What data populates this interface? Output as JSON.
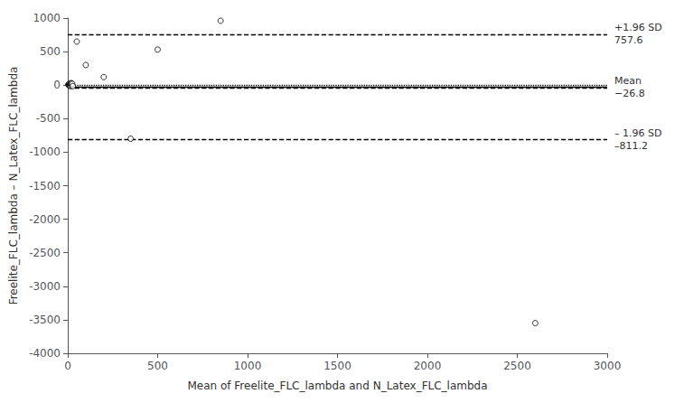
{
  "chart_data": {
    "type": "scatter",
    "xlabel": "Mean of Freelite_FLC_lambda and N_Latex_FLC_lambda",
    "ylabel": "Freelite_FLC_lambda – N_Latex_FLC_lambda",
    "x": [
      3,
      5,
      6,
      7,
      8,
      9,
      10,
      11,
      12,
      13,
      14,
      15,
      16,
      17,
      18,
      20,
      22,
      25,
      28,
      50,
      100,
      200,
      350,
      500,
      850,
      2600
    ],
    "values": [
      5,
      10,
      -3,
      8,
      15,
      -5,
      20,
      10,
      -8,
      5,
      12,
      18,
      -12,
      8,
      25,
      30,
      15,
      20,
      -15,
      650,
      300,
      120,
      -800,
      530,
      960,
      -3550
    ],
    "color": "black",
    "marker": "open_circle",
    "xlim": [
      0,
      3000
    ],
    "ylim": [
      -4000,
      1000
    ],
    "xticks": [
      0,
      500,
      1000,
      1500,
      2000,
      2500,
      3000
    ],
    "yticks": [
      -4000,
      -3500,
      -3000,
      -2500,
      -2000,
      -1500,
      -1000,
      -500,
      0,
      500,
      1000
    ],
    "grid": false,
    "lines": [
      {
        "y": 757.6,
        "line_style": "dashed",
        "color": "black",
        "annotation": [
          "+1.96 SD",
          "757.6"
        ]
      },
      {
        "y": -811.2,
        "line_style": "dashed",
        "color": "black",
        "annotation": [
          "– 1.96 SD",
          "–811.2"
        ]
      },
      {
        "y": -26.8,
        "line_style": "solid",
        "color": "black",
        "annotation": [
          "Mean",
          "−26.8"
        ]
      },
      {
        "y": -6.8,
        "line_style": "dotted",
        "color": "black"
      },
      {
        "y": -46.8,
        "line_style": "dashed",
        "color": "black"
      }
    ]
  }
}
